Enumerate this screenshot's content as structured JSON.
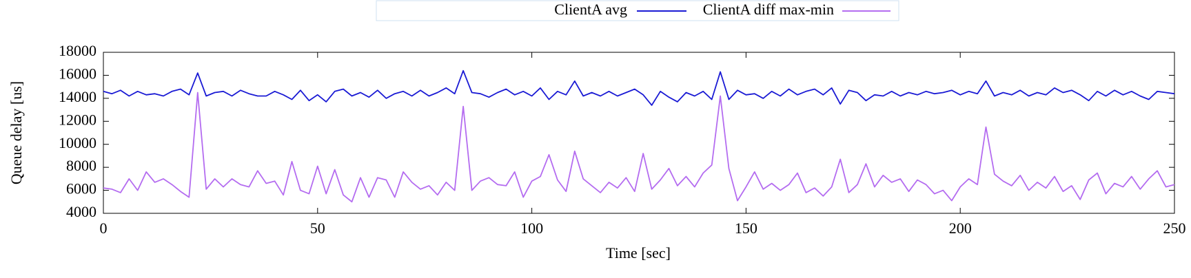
{
  "chart_data": {
    "type": "line",
    "xlabel": "Time [sec]",
    "ylabel": "Queue delay [us]",
    "x": [
      0,
      2,
      4,
      6,
      8,
      10,
      12,
      14,
      16,
      18,
      20,
      22,
      24,
      26,
      28,
      30,
      32,
      34,
      36,
      38,
      40,
      42,
      44,
      46,
      48,
      50,
      52,
      54,
      56,
      58,
      60,
      62,
      64,
      66,
      68,
      70,
      72,
      74,
      76,
      78,
      80,
      82,
      84,
      86,
      88,
      90,
      92,
      94,
      96,
      98,
      100,
      102,
      104,
      106,
      108,
      110,
      112,
      114,
      116,
      118,
      120,
      122,
      124,
      126,
      128,
      130,
      132,
      134,
      136,
      138,
      140,
      142,
      144,
      146,
      148,
      150,
      152,
      154,
      156,
      158,
      160,
      162,
      164,
      166,
      168,
      170,
      172,
      174,
      176,
      178,
      180,
      182,
      184,
      186,
      188,
      190,
      192,
      194,
      196,
      198,
      200,
      202,
      204,
      206,
      208,
      210,
      212,
      214,
      216,
      218,
      220,
      222,
      224,
      226,
      228,
      230,
      232,
      234,
      236,
      238,
      240,
      242,
      244,
      246,
      248,
      250
    ],
    "series": [
      {
        "name": "ClientA avg",
        "color": "#1a1ad4",
        "values": [
          14600,
          14400,
          14700,
          14200,
          14600,
          14300,
          14400,
          14200,
          14600,
          14800,
          14300,
          16200,
          14200,
          14500,
          14600,
          14200,
          14700,
          14400,
          14200,
          14200,
          14600,
          14300,
          13900,
          14700,
          13800,
          14300,
          13700,
          14600,
          14800,
          14200,
          14500,
          14100,
          14700,
          14000,
          14400,
          14600,
          14200,
          14700,
          14200,
          14500,
          14900,
          14400,
          16400,
          14500,
          14400,
          14100,
          14500,
          14800,
          14300,
          14600,
          14200,
          14900,
          13900,
          14600,
          14300,
          15500,
          14200,
          14500,
          14200,
          14600,
          14200,
          14500,
          14800,
          14300,
          13400,
          14600,
          14100,
          13700,
          14500,
          14200,
          14600,
          13900,
          16300,
          13900,
          14700,
          14300,
          14400,
          14000,
          14600,
          14200,
          14800,
          14300,
          14600,
          14800,
          14300,
          14900,
          13500,
          14700,
          14500,
          13800,
          14300,
          14200,
          14600,
          14200,
          14500,
          14300,
          14600,
          14400,
          14500,
          14700,
          14300,
          14600,
          14400,
          15500,
          14200,
          14500,
          14300,
          14700,
          14200,
          14500,
          14300,
          14900,
          14500,
          14700,
          14300,
          13800,
          14600,
          14200,
          14700,
          14300,
          14600,
          14200,
          13900,
          14600,
          14500,
          14400
        ]
      },
      {
        "name": "ClientA diff max-min",
        "color": "#b46cf0",
        "values": [
          6200,
          6100,
          5800,
          7000,
          6000,
          7600,
          6700,
          7000,
          6500,
          5900,
          5400,
          14500,
          6100,
          7000,
          6300,
          7000,
          6500,
          6300,
          7700,
          6600,
          6800,
          5600,
          8500,
          6000,
          5700,
          8100,
          5700,
          7800,
          5600,
          5000,
          7100,
          5400,
          7100,
          6900,
          5400,
          7600,
          6700,
          6100,
          6400,
          5600,
          6700,
          6000,
          13300,
          6000,
          6800,
          7100,
          6500,
          6400,
          7600,
          5400,
          6800,
          7200,
          9100,
          6900,
          5900,
          9400,
          7000,
          6400,
          5800,
          6700,
          6200,
          7100,
          5900,
          9200,
          6100,
          6900,
          7900,
          6400,
          7200,
          6300,
          7500,
          8200,
          14200,
          7900,
          5100,
          6300,
          7600,
          6100,
          6600,
          6000,
          6500,
          7500,
          5800,
          6200,
          5500,
          6300,
          8700,
          5800,
          6500,
          8300,
          6300,
          7300,
          6700,
          7000,
          5900,
          6900,
          6500,
          5700,
          6000,
          5100,
          6300,
          7000,
          6500,
          11500,
          7400,
          6800,
          6400,
          7300,
          6000,
          6700,
          6200,
          7200,
          5900,
          6400,
          5200,
          6900,
          7500,
          5700,
          6600,
          6300,
          7200,
          6100,
          7000,
          7700,
          6300,
          6500
        ]
      }
    ],
    "xlim": [
      0,
      250
    ],
    "xticks": [
      0,
      50,
      100,
      150,
      200,
      250
    ],
    "ylim": [
      4000,
      18000
    ],
    "yticks": [
      4000,
      6000,
      8000,
      10000,
      12000,
      14000,
      16000,
      18000
    ],
    "grid": false,
    "legend": "top"
  }
}
